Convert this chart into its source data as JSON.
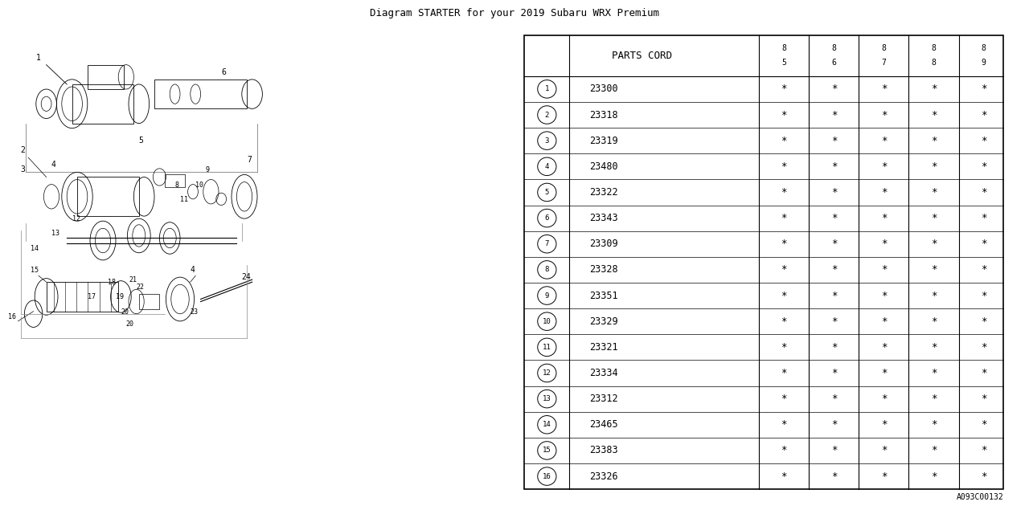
{
  "title": "Diagram STARTER for your 2019 Subaru WRX Premium",
  "table_header": "PARTS CORD",
  "year_columns": [
    "8\n5",
    "8\n6",
    "8\n7",
    "8\n8",
    "8\n9"
  ],
  "parts": [
    {
      "num": 1,
      "code": "23300"
    },
    {
      "num": 2,
      "code": "23318"
    },
    {
      "num": 3,
      "code": "23319"
    },
    {
      "num": 4,
      "code": "23480"
    },
    {
      "num": 5,
      "code": "23322"
    },
    {
      "num": 6,
      "code": "23343"
    },
    {
      "num": 7,
      "code": "23309"
    },
    {
      "num": 8,
      "code": "23328"
    },
    {
      "num": 9,
      "code": "23351"
    },
    {
      "num": 10,
      "code": "23329"
    },
    {
      "num": 11,
      "code": "23321"
    },
    {
      "num": 12,
      "code": "23334"
    },
    {
      "num": 13,
      "code": "23312"
    },
    {
      "num": 14,
      "code": "23465"
    },
    {
      "num": 15,
      "code": "23383"
    },
    {
      "num": 16,
      "code": "23326"
    }
  ],
  "ref_code": "A093C00132",
  "bg_color": "#ffffff",
  "line_color": "#000000",
  "text_color": "#000000",
  "diagram_image_placeholder": true
}
